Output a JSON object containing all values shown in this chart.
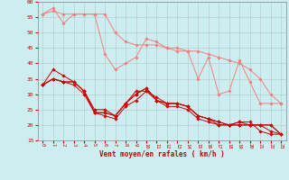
{
  "xlabel": "Vent moyen/en rafales ( km/h )",
  "background_color": "#cceef0",
  "grid_color": "#aaaaaa",
  "xlim": [
    -0.5,
    23.5
  ],
  "ylim": [
    15,
    60
  ],
  "yticks": [
    15,
    20,
    25,
    30,
    35,
    40,
    45,
    50,
    55,
    60
  ],
  "xticks": [
    0,
    1,
    2,
    3,
    4,
    5,
    6,
    7,
    8,
    9,
    10,
    11,
    12,
    13,
    14,
    15,
    16,
    17,
    18,
    19,
    20,
    21,
    22,
    23
  ],
  "x": [
    0,
    1,
    2,
    3,
    4,
    5,
    6,
    7,
    8,
    9,
    10,
    11,
    12,
    13,
    14,
    15,
    16,
    17,
    18,
    19,
    20,
    21,
    22,
    23
  ],
  "series_light": [
    [
      56,
      58,
      53,
      56,
      56,
      56,
      43,
      38,
      40,
      42,
      48,
      47,
      45,
      44,
      44,
      35,
      42,
      30,
      31,
      41,
      34,
      27,
      27,
      27
    ],
    [
      56,
      57,
      56,
      56,
      56,
      56,
      56,
      50,
      47,
      46,
      46,
      46,
      45,
      45,
      44,
      44,
      43,
      42,
      41,
      40,
      38,
      35,
      30,
      27
    ]
  ],
  "series_dark": [
    [
      33,
      38,
      36,
      34,
      31,
      25,
      25,
      23,
      27,
      31,
      31,
      28,
      27,
      27,
      26,
      23,
      22,
      21,
      20,
      21,
      21,
      18,
      17,
      17
    ],
    [
      33,
      35,
      34,
      34,
      31,
      24,
      24,
      23,
      27,
      30,
      32,
      28,
      27,
      27,
      26,
      23,
      22,
      20,
      20,
      20,
      20,
      20,
      20,
      17
    ],
    [
      33,
      35,
      34,
      34,
      31,
      24,
      24,
      23,
      27,
      30,
      32,
      28,
      26,
      26,
      25,
      22,
      21,
      20,
      20,
      20,
      20,
      20,
      20,
      17
    ],
    [
      33,
      35,
      34,
      33,
      30,
      24,
      23,
      22,
      26,
      28,
      31,
      29,
      27,
      27,
      26,
      23,
      22,
      21,
      20,
      21,
      20,
      20,
      18,
      17
    ]
  ],
  "color_light": "#f08080",
  "color_dark": "#cc0000",
  "marker": "D",
  "markersize": 1.8,
  "linewidth": 0.7
}
